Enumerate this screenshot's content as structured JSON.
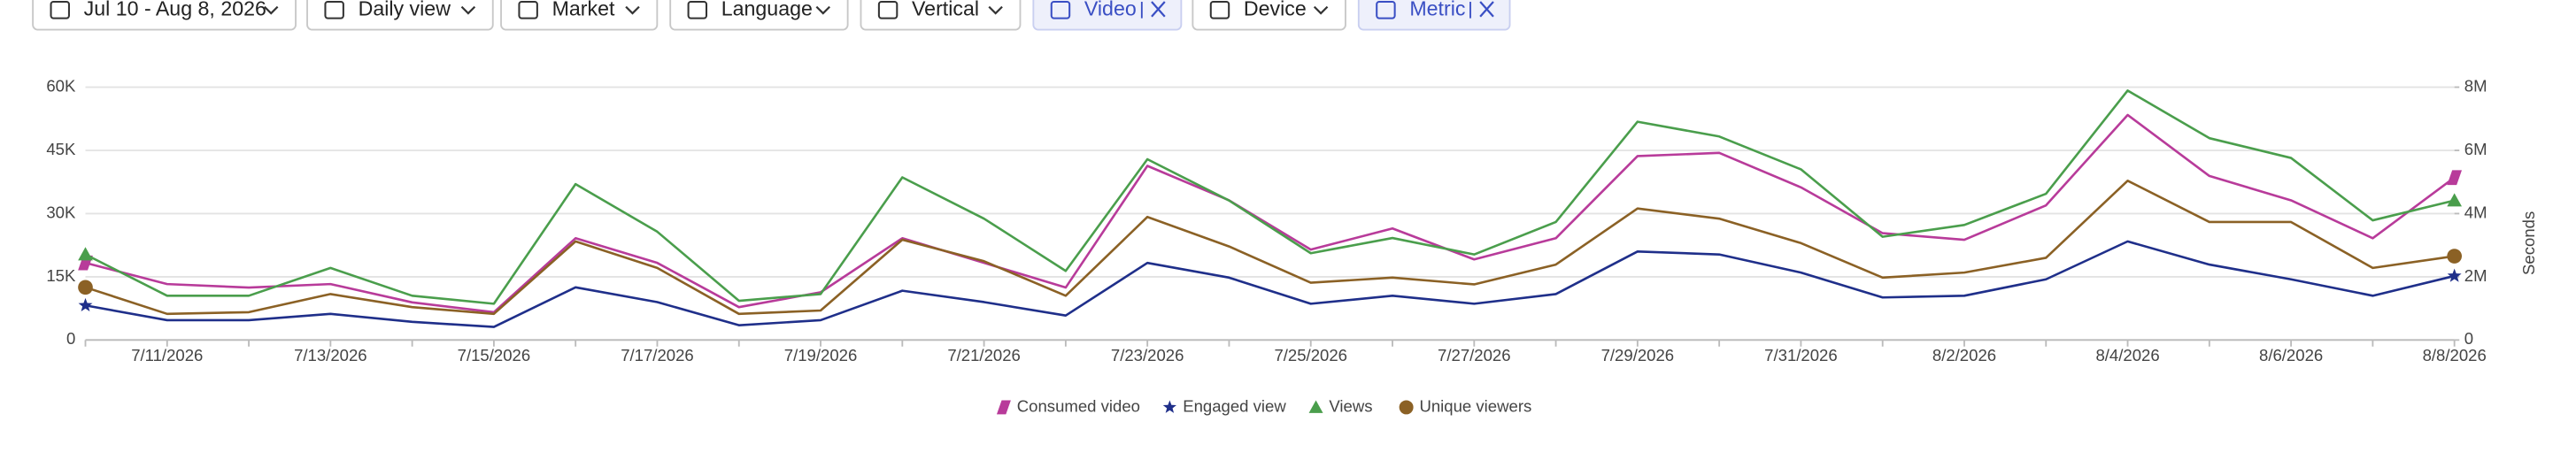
{
  "filters": [
    {
      "label": "Jul 10 - Aug 8, 2026",
      "active": false
    },
    {
      "label": "Daily view",
      "active": false
    },
    {
      "label": "Market",
      "active": false
    },
    {
      "label": "Language",
      "active": false
    },
    {
      "label": "Vertical",
      "active": false
    },
    {
      "label": "Video",
      "active": true
    },
    {
      "label": "Device",
      "active": false
    },
    {
      "label": "Metric",
      "active": true
    }
  ],
  "chart_data": {
    "type": "line",
    "y2_label": "Seconds",
    "categories": [
      null,
      "7/11/2026",
      null,
      "7/13/2026",
      null,
      "7/15/2026",
      null,
      "7/17/2026",
      null,
      "7/19/2026",
      null,
      "7/21/2026",
      null,
      "7/23/2026",
      null,
      "7/25/2026",
      null,
      "7/27/2026",
      null,
      "7/29/2026",
      null,
      "7/31/2026",
      null,
      "8/2/2026",
      null,
      "8/4/2026",
      null,
      "8/6/2026",
      null,
      "8/8/2026"
    ],
    "ylim": [
      0,
      60000
    ],
    "yticks": [
      0,
      {
        "value": 15000,
        "label": "15K"
      },
      {
        "value": 30000,
        "label": "30K"
      },
      {
        "value": 45000,
        "label": "45K"
      },
      {
        "value": 60000,
        "label": "60K"
      }
    ],
    "y2lim": [
      0,
      8000000
    ],
    "y2ticks": [
      0,
      {
        "value": 2000000,
        "label": "2M"
      },
      {
        "value": 4000000,
        "label": "4M"
      },
      {
        "value": 6000000,
        "label": "6M"
      },
      {
        "value": 8000000,
        "label": "8M"
      }
    ],
    "grid": true,
    "legend": "bottom",
    "series": [
      {
        "name": "Consumed video",
        "color": "#b83b9a",
        "marker": "parallelogram",
        "axis": "y2",
        "values": [
          2440000,
          1770000,
          1660000,
          1770000,
          1190000,
          880000,
          3220000,
          2440000,
          1040000,
          1510000,
          3220000,
          2440000,
          1660000,
          5510000,
          4420000,
          2860000,
          3530000,
          2550000,
          3220000,
          5820000,
          5920000,
          4830000,
          3380000,
          3170000,
          4260000,
          7120000,
          5190000,
          4420000,
          3220000,
          5140000
        ]
      },
      {
        "name": "Engaged view",
        "color": "#1f2f8a",
        "marker": "star",
        "values": [
          8200,
          4700,
          4700,
          6200,
          4300,
          3100,
          12500,
          9000,
          3500,
          4700,
          11700,
          9000,
          5800,
          18300,
          14800,
          8600,
          10500,
          8600,
          10900,
          21000,
          20300,
          16000,
          10100,
          10500,
          14400,
          23400,
          17900,
          14400,
          10500,
          15200
        ]
      },
      {
        "name": "Views",
        "color": "#4a9e4c",
        "marker": "triangle",
        "values": [
          20300,
          10500,
          10500,
          17100,
          10500,
          8600,
          37000,
          25700,
          9300,
          10900,
          38600,
          28800,
          16400,
          42900,
          33100,
          20600,
          24200,
          20300,
          28000,
          51800,
          48300,
          40500,
          24500,
          27300,
          34700,
          59200,
          47900,
          43200,
          28400,
          33100
        ]
      },
      {
        "name": "Unique viewers",
        "color": "#8b6125",
        "marker": "circle",
        "values": [
          12500,
          6200,
          6600,
          10900,
          7800,
          6200,
          23400,
          17100,
          6200,
          7000,
          23800,
          18700,
          10500,
          29200,
          22200,
          13600,
          14800,
          13200,
          17900,
          31200,
          28800,
          23000,
          14800,
          16000,
          19500,
          37800,
          28000,
          28000,
          17100,
          19900
        ]
      }
    ]
  }
}
